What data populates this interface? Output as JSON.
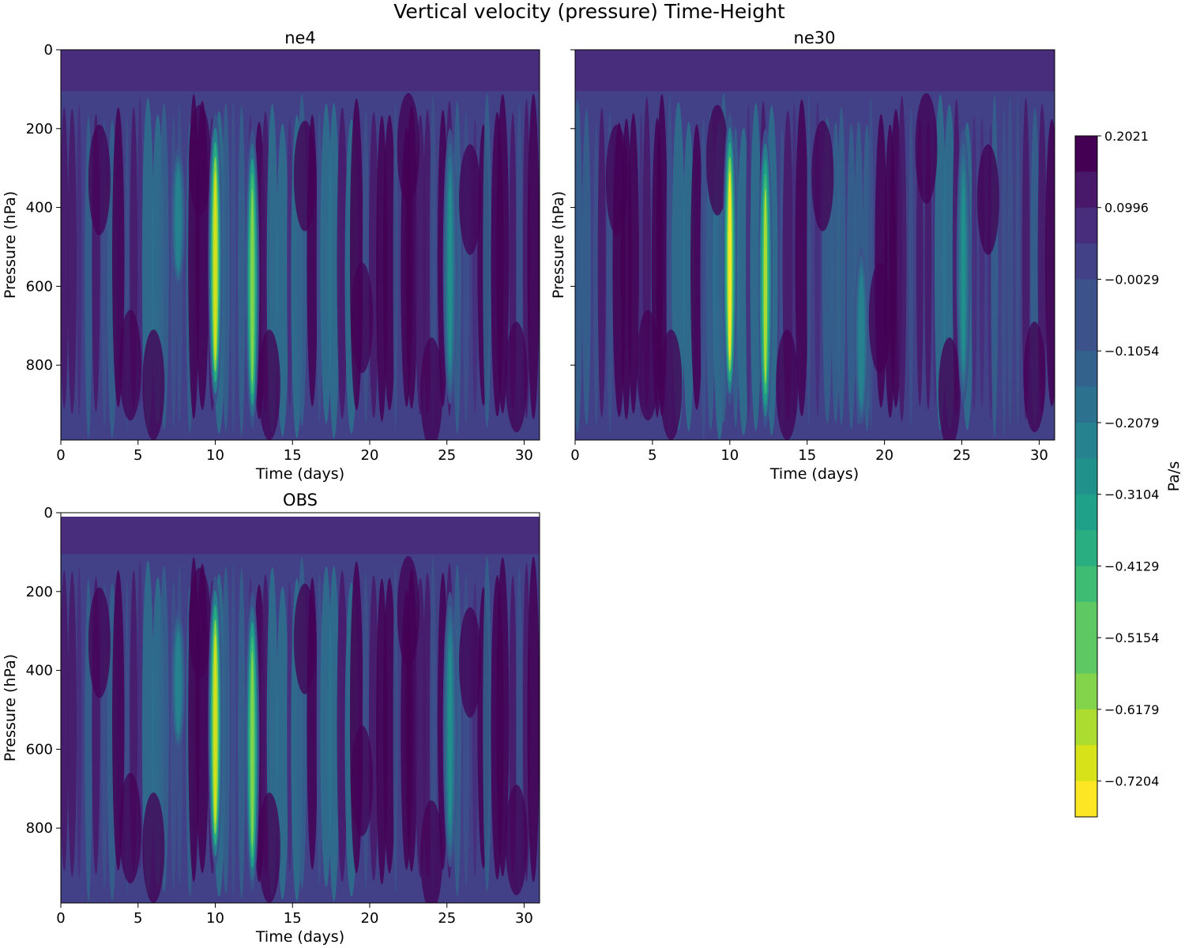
{
  "figure": {
    "title": "Vertical velocity (pressure) Time-Height"
  },
  "colors": {
    "viridis": [
      "#440154",
      "#48186a",
      "#472d7b",
      "#424086",
      "#3b528b",
      "#33638d",
      "#2c728e",
      "#26828e",
      "#21918c",
      "#1fa088",
      "#28ae80",
      "#3fbc73",
      "#5ec962",
      "#84d44b",
      "#addc30",
      "#d8e219",
      "#fde725"
    ],
    "obs_top_band": "#ffffff"
  },
  "chart_data": [
    {
      "type": "heatmap",
      "title": "ne4",
      "xlabel": "Time (days)",
      "ylabel": "Pressure (hPa)",
      "xlim": [
        0,
        31
      ],
      "ylim": [
        990,
        0
      ],
      "xticks": [
        "0",
        "5",
        "10",
        "15",
        "20",
        "25",
        "30"
      ],
      "yticks": [
        "0",
        "200",
        "400",
        "600",
        "800"
      ],
      "features": [
        {
          "time_days": 10.0,
          "pressure_top_hPa": 160,
          "pressure_bottom_hPa": 900,
          "peak_value_Pa_s": -0.7
        },
        {
          "time_days": 12.4,
          "pressure_top_hPa": 200,
          "pressure_bottom_hPa": 960,
          "peak_value_Pa_s": -0.55
        },
        {
          "time_days": 25.2,
          "pressure_top_hPa": 200,
          "pressure_bottom_hPa": 900,
          "peak_value_Pa_s": -0.3
        },
        {
          "time_days": 7.6,
          "pressure_top_hPa": 250,
          "pressure_bottom_hPa": 600,
          "peak_value_Pa_s": -0.25
        }
      ]
    },
    {
      "type": "heatmap",
      "title": "ne30",
      "xlabel": "Time (days)",
      "ylabel": "Pressure (hPa)",
      "xlim": [
        0,
        31
      ],
      "ylim": [
        990,
        0
      ],
      "xticks": [
        "0",
        "5",
        "10",
        "15",
        "20",
        "25",
        "30"
      ],
      "yticks": [
        "0",
        "200",
        "400",
        "600",
        "800"
      ],
      "features": [
        {
          "time_days": 10.0,
          "pressure_top_hPa": 160,
          "pressure_bottom_hPa": 900,
          "peak_value_Pa_s": -0.72
        },
        {
          "time_days": 12.3,
          "pressure_top_hPa": 200,
          "pressure_bottom_hPa": 960,
          "peak_value_Pa_s": -0.6
        },
        {
          "time_days": 25.1,
          "pressure_top_hPa": 200,
          "pressure_bottom_hPa": 900,
          "peak_value_Pa_s": -0.3
        },
        {
          "time_days": 18.5,
          "pressure_top_hPa": 500,
          "pressure_bottom_hPa": 950,
          "peak_value_Pa_s": -0.25
        }
      ]
    },
    {
      "type": "heatmap",
      "title": "OBS",
      "xlabel": "Time (days)",
      "ylabel": "Pressure (hPa)",
      "xlim": [
        0,
        31
      ],
      "ylim": [
        990,
        0
      ],
      "xticks": [
        "0",
        "5",
        "10",
        "15",
        "20",
        "25",
        "30"
      ],
      "yticks": [
        "0",
        "200",
        "400",
        "600",
        "800"
      ],
      "features": [
        {
          "time_days": 10.0,
          "pressure_top_hPa": 160,
          "pressure_bottom_hPa": 900,
          "peak_value_Pa_s": -0.7
        },
        {
          "time_days": 12.4,
          "pressure_top_hPa": 200,
          "pressure_bottom_hPa": 960,
          "peak_value_Pa_s": -0.55
        },
        {
          "time_days": 25.2,
          "pressure_top_hPa": 200,
          "pressure_bottom_hPa": 900,
          "peak_value_Pa_s": -0.3
        },
        {
          "time_days": 7.6,
          "pressure_top_hPa": 250,
          "pressure_bottom_hPa": 600,
          "peak_value_Pa_s": -0.25
        }
      ]
    }
  ],
  "colorbar": {
    "label": "Pa/s",
    "min": -0.7716,
    "max": 0.2021,
    "levels": 19,
    "tick_values": [
      0.2021,
      0.0996,
      -0.0029,
      -0.1054,
      -0.2079,
      -0.3104,
      -0.4129,
      -0.5154,
      -0.6179,
      -0.7204
    ],
    "tick_labels": [
      "0.2021",
      "0.0996",
      "−0.0029",
      "−0.1054",
      "−0.2079",
      "−0.3104",
      "−0.4129",
      "−0.5154",
      "−0.6179",
      "−0.7204"
    ]
  }
}
